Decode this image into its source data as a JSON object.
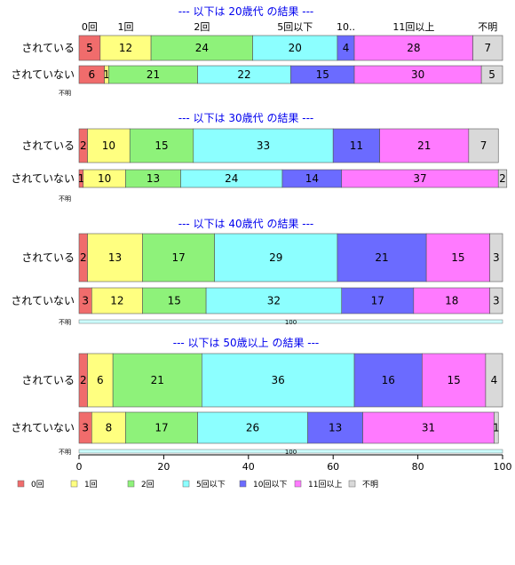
{
  "chart_data": {
    "type": "bar",
    "orientation": "horizontal",
    "stacked": true,
    "xlim": [
      0,
      100
    ],
    "x_ticks": [
      0,
      20,
      40,
      60,
      80,
      100
    ],
    "categories": [
      "されている",
      "されていない"
    ],
    "legend_position": "bottom",
    "legend": [
      {
        "label": "0回",
        "color": "#f06c6c"
      },
      {
        "label": "1回",
        "color": "#ffff80"
      },
      {
        "label": "2回",
        "color": "#8ef27a"
      },
      {
        "label": "5回以下",
        "color": "#8cffff"
      },
      {
        "label": "10回以下",
        "color": "#6b6bff"
      },
      {
        "label": "11回以上",
        "color": "#ff7aff"
      },
      {
        "label": "不明",
        "color": "#d9d9d9"
      }
    ],
    "panels": [
      {
        "title": "--- 以下は 20歳代 の結果 ---",
        "top_labels": [
          "0回",
          "1回",
          "2回",
          "5回以下",
          "10..",
          "11回以上",
          "不明"
        ],
        "note_label": "不明",
        "note_value": "",
        "rows": [
          {
            "label": "されている",
            "values": [
              5,
              12,
              24,
              20,
              4,
              28,
              7
            ]
          },
          {
            "label": "されていない",
            "values": [
              6,
              1,
              21,
              22,
              15,
              30,
              5
            ]
          }
        ]
      },
      {
        "title": "--- 以下は 30歳代 の結果 ---",
        "top_labels": [],
        "note_label": "不明",
        "note_value": "",
        "rows": [
          {
            "label": "されている",
            "values": [
              2,
              10,
              15,
              33,
              11,
              21,
              7
            ]
          },
          {
            "label": "されていない",
            "values": [
              1,
              10,
              13,
              24,
              14,
              37,
              2
            ]
          }
        ]
      },
      {
        "title": "--- 以下は 40歳代 の結果 ---",
        "top_labels": [],
        "note_label": "不明",
        "note_value": "100",
        "rows": [
          {
            "label": "されている",
            "values": [
              2,
              13,
              17,
              29,
              21,
              15,
              3
            ]
          },
          {
            "label": "されていない",
            "values": [
              3,
              12,
              15,
              32,
              17,
              18,
              3
            ]
          }
        ]
      },
      {
        "title": "--- 以下は 50歳以上 の結果 ---",
        "top_labels": [],
        "note_label": "不明",
        "note_value": "100",
        "rows": [
          {
            "label": "されている",
            "values": [
              2,
              6,
              21,
              36,
              16,
              15,
              4
            ]
          },
          {
            "label": "されていない",
            "values": [
              3,
              8,
              17,
              26,
              13,
              31,
              1
            ]
          }
        ]
      }
    ]
  }
}
